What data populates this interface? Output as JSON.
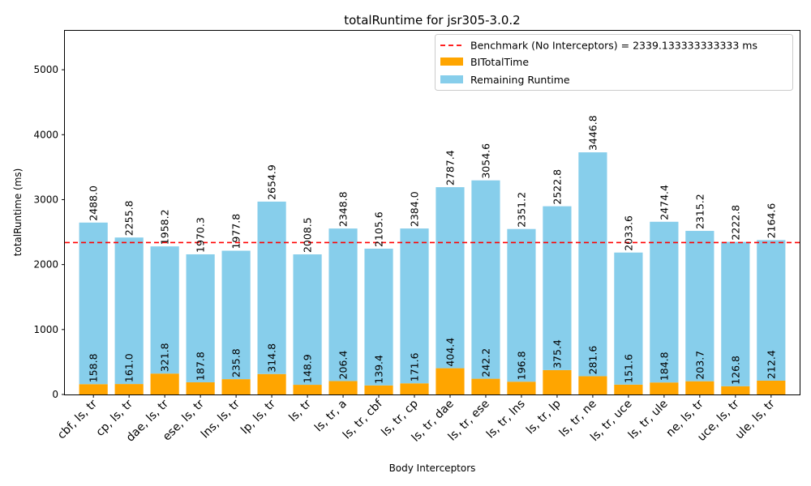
{
  "chart_data": {
    "type": "bar",
    "stacked": true,
    "title": "totalRuntime for jsr305-3.0.2",
    "xlabel": "Body Interceptors",
    "ylabel": "totalRuntime (ms)",
    "ylim": [
      0,
      5600
    ],
    "yticks": [
      0,
      1000,
      2000,
      3000,
      4000,
      5000
    ],
    "grid": false,
    "legend_position": "top-right",
    "categories": [
      "cbf, ls, tr",
      "cp, ls, tr",
      "dae, ls, tr",
      "ese, ls, tr",
      "lns, ls, tr",
      "lp, ls, tr",
      "ls, tr",
      "ls, tr, a",
      "ls, tr, cbf",
      "ls, tr, cp",
      "ls, tr, dae",
      "ls, tr, ese",
      "ls, tr, lns",
      "ls, tr, lp",
      "ls, tr, ne",
      "ls, tr, uce",
      "ls, tr, ule",
      "ne, ls, tr",
      "uce, ls, tr",
      "ule, ls, tr"
    ],
    "series": [
      {
        "name": "BITotalTime",
        "color": "#FFA500",
        "values": [
          158.8,
          161.0,
          321.8,
          187.8,
          235.8,
          314.8,
          148.9,
          206.4,
          139.4,
          171.6,
          404.4,
          242.2,
          196.8,
          375.4,
          281.6,
          151.6,
          184.8,
          203.7,
          126.8,
          212.4
        ]
      },
      {
        "name": "Remaining Runtime",
        "color": "#87CEEB",
        "values": [
          2488.0,
          2255.8,
          1958.2,
          1970.3,
          1977.8,
          2654.9,
          2008.5,
          2348.8,
          2105.6,
          2384.0,
          2787.4,
          3054.6,
          2351.2,
          2522.8,
          3446.8,
          2033.6,
          2474.4,
          2315.2,
          2222.8,
          2164.6
        ]
      }
    ],
    "benchmark": {
      "label": "Benchmark (No Interceptors) = 2339.133333333333 ms",
      "value": 2339.133333333333,
      "color": "#FF0000"
    }
  }
}
